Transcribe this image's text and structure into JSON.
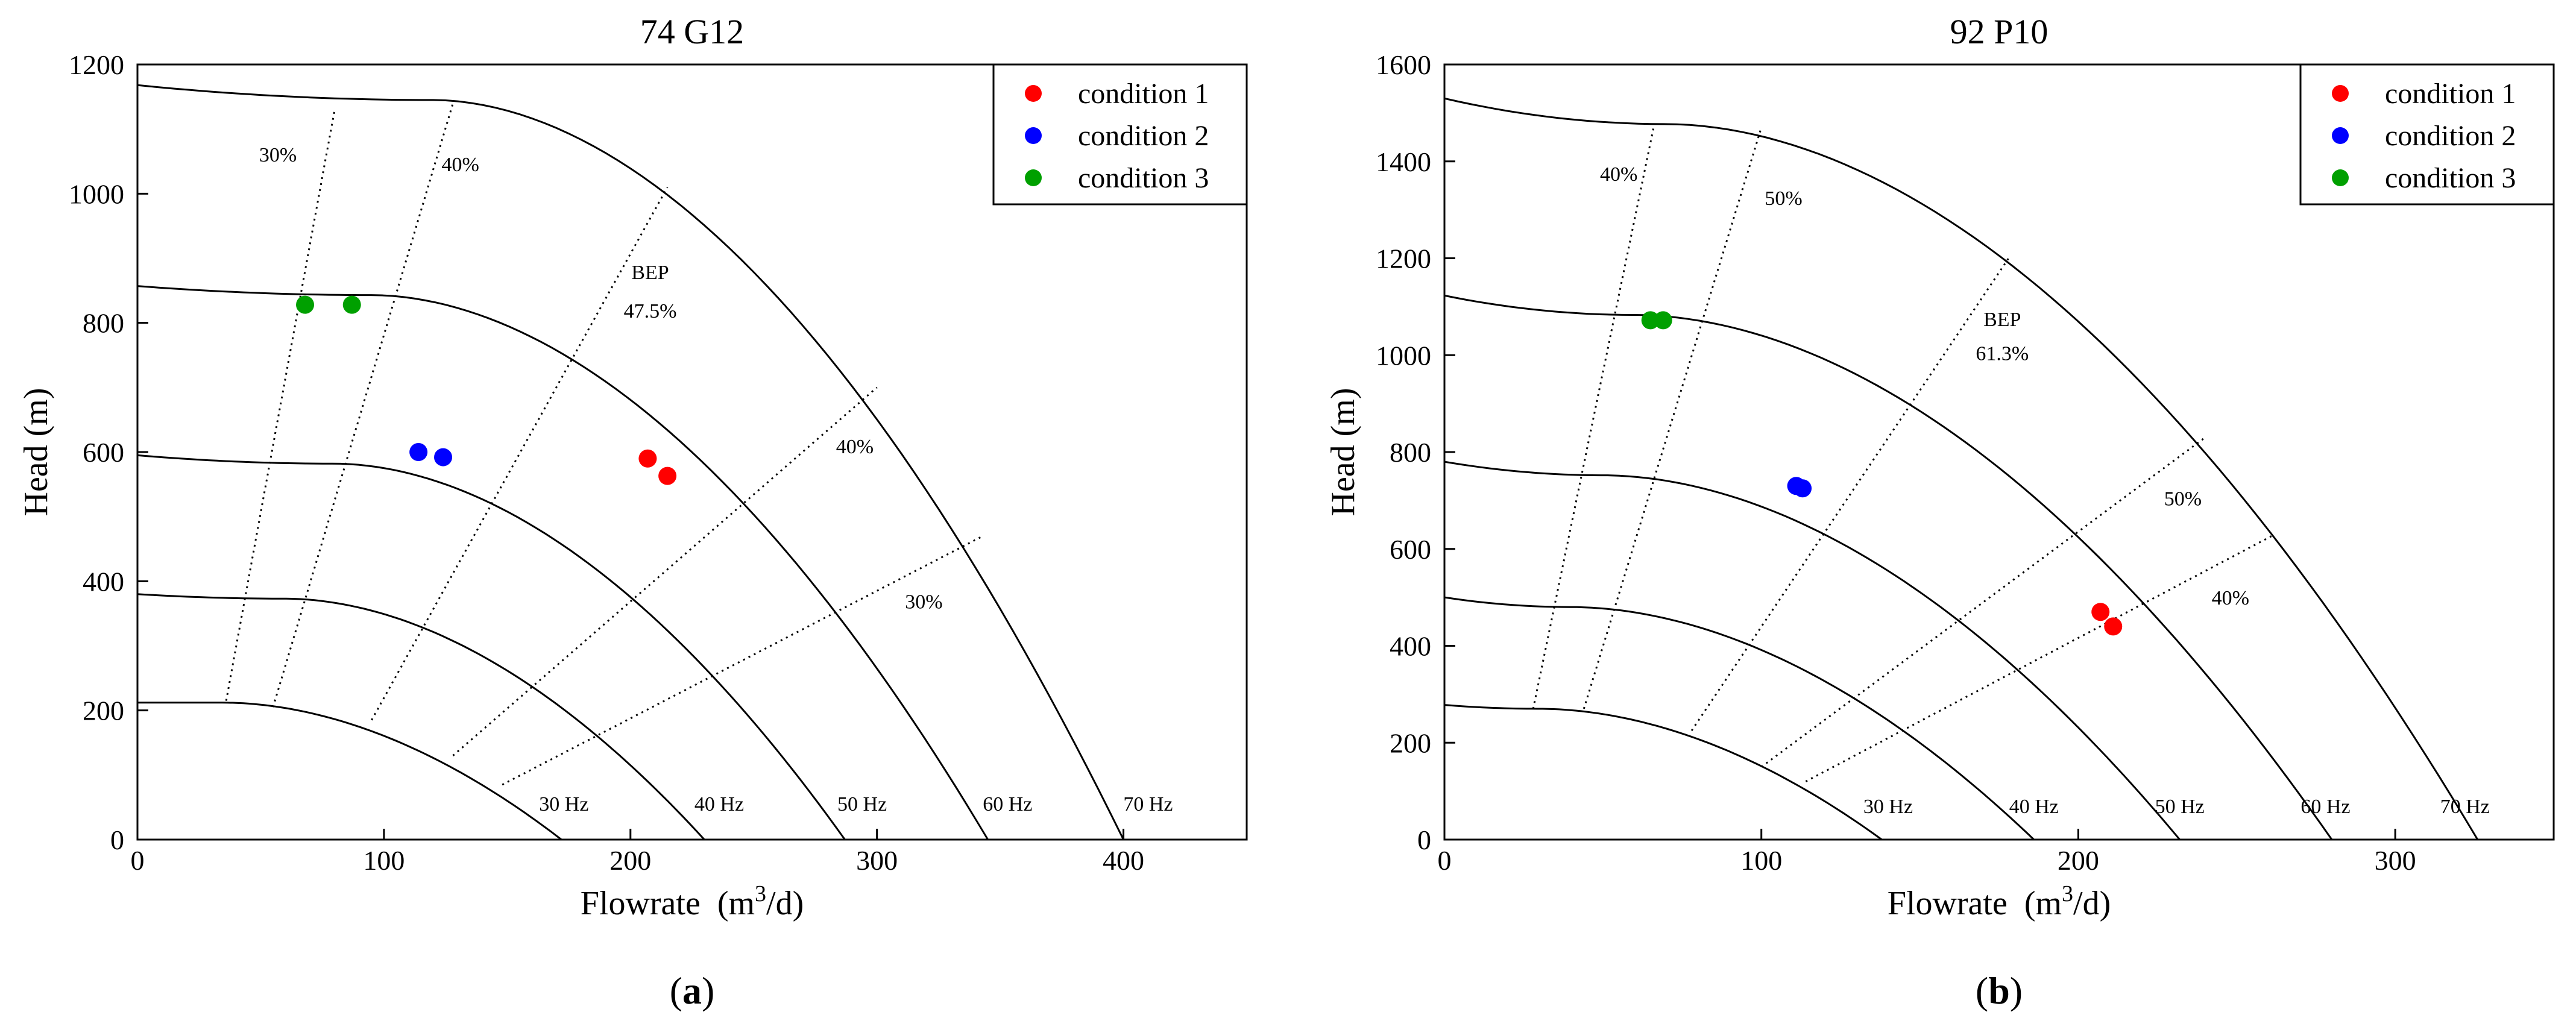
{
  "chart_data": [
    {
      "type": "scatter",
      "panel_label": "a",
      "title": "74 G12",
      "xlabel": "Flowrate",
      "xlabel_unit_pre": "(m",
      "xlabel_unit_sup": "3",
      "xlabel_unit_post": "/d)",
      "ylabel": "Head (m)",
      "xlim": [
        0,
        450
      ],
      "ylim": [
        0,
        1200
      ],
      "xticks": [
        0,
        100,
        200,
        300,
        400
      ],
      "yticks": [
        0,
        200,
        400,
        600,
        800,
        1000,
        1200
      ],
      "legend_position": "top-right",
      "series": [
        {
          "name": "condition 1",
          "color": "#ff0000",
          "points": [
            [
              207,
              590
            ],
            [
              215,
              563
            ]
          ]
        },
        {
          "name": "condition 2",
          "color": "#0000ff",
          "points": [
            [
              114,
              600
            ],
            [
              124,
              592
            ]
          ]
        },
        {
          "name": "condition 3",
          "color": "#00a000",
          "points": [
            [
              68,
              828
            ],
            [
              87,
              828
            ]
          ]
        }
      ],
      "hz_curves": [
        {
          "label": "30 Hz",
          "h0": 212,
          "hmax": 212,
          "qmax": 172,
          "qflat": 35,
          "qoff": 20
        },
        {
          "label": "40 Hz",
          "h0": 380,
          "hmax": 373,
          "qmax": 230,
          "qflat": 60,
          "qoff": 15
        },
        {
          "label": "50 Hz",
          "h0": 595,
          "hmax": 582,
          "qmax": 287,
          "qflat": 80,
          "qoff": 12
        },
        {
          "label": "60 Hz",
          "h0": 857,
          "hmax": 843,
          "qmax": 345,
          "qflat": 95,
          "qoff": 10
        },
        {
          "label": "70 Hz",
          "h0": 1168,
          "hmax": 1145,
          "qmax": 400,
          "qflat": 120,
          "qoff": 10
        }
      ],
      "eff_lines": [
        {
          "label": "30%",
          "from": [
            36,
            215
          ],
          "to": [
            80,
            1130
          ]
        },
        {
          "label": "40%",
          "from": [
            55,
            205
          ],
          "to": [
            128,
            1140
          ]
        },
        {
          "label": "BEP 47.5%",
          "from": [
            95,
            185
          ],
          "to": [
            215,
            1010
          ]
        },
        {
          "label": "40%",
          "from": [
            128,
            130
          ],
          "to": [
            300,
            700
          ]
        },
        {
          "label": "30%",
          "from": [
            148,
            85
          ],
          "to": [
            343,
            470
          ]
        }
      ],
      "annotations": [
        {
          "text": "30%",
          "x": 57,
          "y": 1050
        },
        {
          "text": "40%",
          "x": 131,
          "y": 1035
        },
        {
          "text": "BEP",
          "x": 208,
          "y": 868
        },
        {
          "text": "47.5%",
          "x": 208,
          "y": 808
        },
        {
          "text": "40%",
          "x": 291,
          "y": 598
        },
        {
          "text": "30%",
          "x": 319,
          "y": 358
        },
        {
          "text": "30 Hz",
          "x": 173,
          "y": 45
        },
        {
          "text": "40 Hz",
          "x": 236,
          "y": 45
        },
        {
          "text": "50 Hz",
          "x": 294,
          "y": 45
        },
        {
          "text": "60 Hz",
          "x": 353,
          "y": 45
        },
        {
          "text": "70 Hz",
          "x": 410,
          "y": 45
        }
      ]
    },
    {
      "type": "scatter",
      "panel_label": "b",
      "title": "92 P10",
      "xlabel": "Flowrate",
      "xlabel_unit_pre": "(m",
      "xlabel_unit_sup": "3",
      "xlabel_unit_post": "/d)",
      "ylabel": "Head (m)",
      "xlim": [
        0,
        350
      ],
      "ylim": [
        0,
        1600
      ],
      "xticks": [
        0,
        100,
        200,
        300
      ],
      "yticks": [
        0,
        200,
        400,
        600,
        800,
        1000,
        1200,
        1400,
        1600
      ],
      "legend_position": "top-right",
      "series": [
        {
          "name": "condition 1",
          "color": "#ff0000",
          "points": [
            [
              207,
              470
            ],
            [
              211,
              440
            ]
          ]
        },
        {
          "name": "condition 2",
          "color": "#0000ff",
          "points": [
            [
              111,
              730
            ],
            [
              113,
              725
            ]
          ]
        },
        {
          "name": "condition 3",
          "color": "#00a000",
          "points": [
            [
              65,
              1072
            ],
            [
              69,
              1072
            ]
          ]
        }
      ],
      "hz_curves": [
        {
          "label": "30 Hz",
          "h0": 278,
          "hmax": 270,
          "qmax": 138,
          "qflat": 30,
          "qoff": 10
        },
        {
          "label": "40 Hz",
          "h0": 500,
          "hmax": 480,
          "qmax": 186,
          "qflat": 40,
          "qoff": 10
        },
        {
          "label": "50 Hz",
          "h0": 780,
          "hmax": 752,
          "qmax": 232,
          "qflat": 50,
          "qoff": 10
        },
        {
          "label": "60 Hz",
          "h0": 1123,
          "hmax": 1083,
          "qmax": 280,
          "qflat": 60,
          "qoff": 10
        },
        {
          "label": "70 Hz",
          "h0": 1530,
          "hmax": 1477,
          "qmax": 326,
          "qflat": 70,
          "qoff": 10
        }
      ],
      "eff_lines": [
        {
          "label": "40%",
          "from": [
            28,
            270
          ],
          "to": [
            66,
            1470
          ]
        },
        {
          "label": "50%",
          "from": [
            44,
            270
          ],
          "to": [
            100,
            1470
          ]
        },
        {
          "label": "BEP 61.3%",
          "from": [
            78,
            225
          ],
          "to": [
            178,
            1200
          ]
        },
        {
          "label": "50%",
          "from": [
            100,
            150
          ],
          "to": [
            240,
            830
          ]
        },
        {
          "label": "40%",
          "from": [
            114,
            120
          ],
          "to": [
            262,
            630
          ]
        }
      ],
      "annotations": [
        {
          "text": "40%",
          "x": 55,
          "y": 1360
        },
        {
          "text": "50%",
          "x": 107,
          "y": 1310
        },
        {
          "text": "BEP",
          "x": 176,
          "y": 1060
        },
        {
          "text": "61.3%",
          "x": 176,
          "y": 990
        },
        {
          "text": "50%",
          "x": 233,
          "y": 690
        },
        {
          "text": "40%",
          "x": 248,
          "y": 485
        },
        {
          "text": "30 Hz",
          "x": 140,
          "y": 55
        },
        {
          "text": "40 Hz",
          "x": 186,
          "y": 55
        },
        {
          "text": "50 Hz",
          "x": 232,
          "y": 55
        },
        {
          "text": "60 Hz",
          "x": 278,
          "y": 55
        },
        {
          "text": "70 Hz",
          "x": 322,
          "y": 55
        }
      ]
    }
  ]
}
